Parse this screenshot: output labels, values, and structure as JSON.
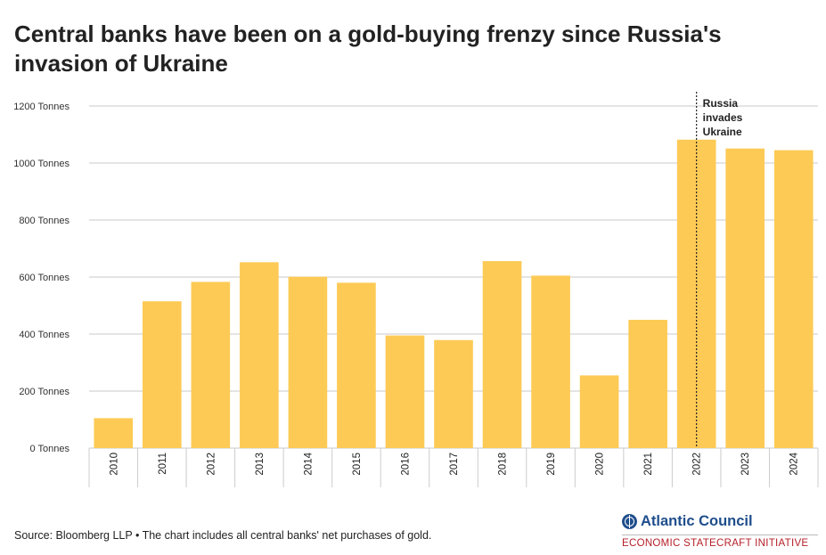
{
  "title": {
    "line1": "Central banks have been on a gold-buying frenzy since Russia's",
    "line2": "invasion of Ukraine"
  },
  "footer": {
    "source": "Source: Bloomberg LLP • The chart includes all central banks' net purchases of gold."
  },
  "brand": {
    "name": "Atlantic Council",
    "subtitle": "ECONOMIC STATECRAFT INITIATIVE",
    "icon": "globe-icon",
    "name_color": "#1f4e8c",
    "subtitle_color": "#b5202a"
  },
  "chart_data": {
    "type": "bar",
    "categories": [
      "2010",
      "2011",
      "2012",
      "2013",
      "2014",
      "2015",
      "2016",
      "2017",
      "2018",
      "2019",
      "2020",
      "2021",
      "2022",
      "2023",
      "2024"
    ],
    "values": [
      105,
      515,
      583,
      652,
      601,
      580,
      395,
      379,
      656,
      605,
      255,
      450,
      1082,
      1051,
      1045
    ],
    "ylim": [
      0,
      1200
    ],
    "yticks": [
      {
        "value": 0,
        "label": "0 Tonnes"
      },
      {
        "value": 200,
        "label": "200 Tonnes"
      },
      {
        "value": 400,
        "label": "400 Tonnes"
      },
      {
        "value": 600,
        "label": "600 Tonnes"
      },
      {
        "value": 800,
        "label": "800 Tonnes"
      },
      {
        "value": 1000,
        "label": "1000 Tonnes"
      },
      {
        "value": 1200,
        "label": "1200 Tonnes"
      }
    ],
    "grid": true,
    "bar_color": "#fdca55",
    "annotation": {
      "category": "2022",
      "lines": [
        "Russia",
        "invades",
        "Ukraine"
      ]
    }
  }
}
